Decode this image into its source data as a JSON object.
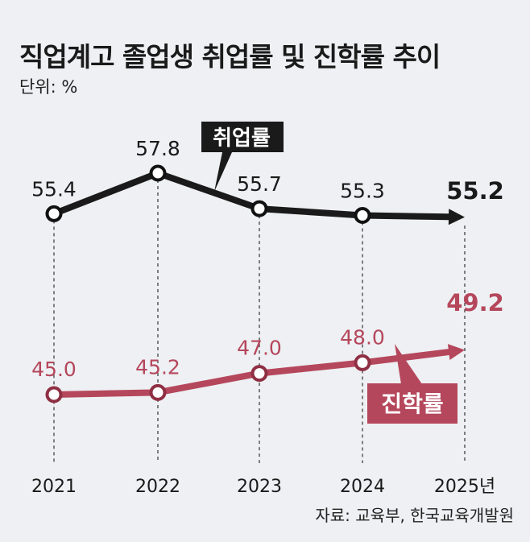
{
  "chart_data": {
    "type": "line",
    "title": "직업계고 졸업생 취업률 및 진학률 추이",
    "unit": "단위: %",
    "categories": [
      "2021",
      "2022",
      "2023",
      "2024",
      "2025년"
    ],
    "series": [
      {
        "name": "취업률",
        "values": [
          55.4,
          57.8,
          55.7,
          55.3,
          55.2
        ],
        "labels": [
          "55.4",
          "57.8",
          "55.7",
          "55.3",
          "55.2"
        ],
        "color": "#1a1a1a"
      },
      {
        "name": "진학률",
        "values": [
          45.0,
          45.2,
          47.0,
          48.0,
          49.2
        ],
        "labels": [
          "45.0",
          "45.2",
          "47.0",
          "48.0",
          "49.2"
        ],
        "color": "#b5475c"
      }
    ],
    "source": "자료: 교육부, 한국교육개발원"
  }
}
